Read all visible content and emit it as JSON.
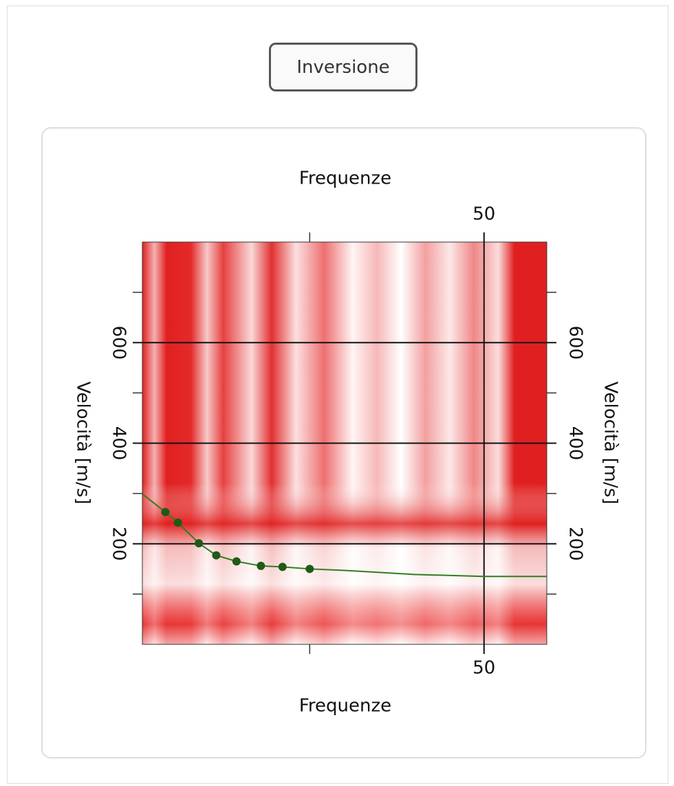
{
  "button": {
    "label": "Inversione"
  },
  "chart_data": {
    "type": "line",
    "xlabel": "Frequenze",
    "x2label": "Frequenze",
    "ylabel": "Velocità [m/s]",
    "y2label": "Velocità [m/s]",
    "xlim": [
      1,
      59
    ],
    "xticks": [
      50
    ],
    "xminorticks": [
      25
    ],
    "ylim": [
      0,
      800
    ],
    "yticks": [
      200,
      400,
      600
    ],
    "yminorticks": [
      100,
      300,
      500,
      700
    ],
    "grid": true,
    "series": [
      {
        "color": "#2e7d1e",
        "marker": false,
        "x": [
          1,
          4.3,
          6.1,
          9.1,
          11.6,
          14.5,
          18,
          21.1,
          25,
          30,
          40,
          50,
          59
        ],
        "values": [
          299,
          263,
          242,
          201,
          177,
          165,
          156,
          154,
          150,
          147,
          139,
          135,
          135
        ]
      },
      {
        "color": "#1f5a17",
        "marker": true,
        "x": [
          4.3,
          6.1,
          9.1,
          11.6,
          14.5,
          18,
          21.1,
          25
        ],
        "values": [
          263,
          242,
          201,
          177,
          165,
          156,
          154,
          150
        ]
      }
    ]
  }
}
